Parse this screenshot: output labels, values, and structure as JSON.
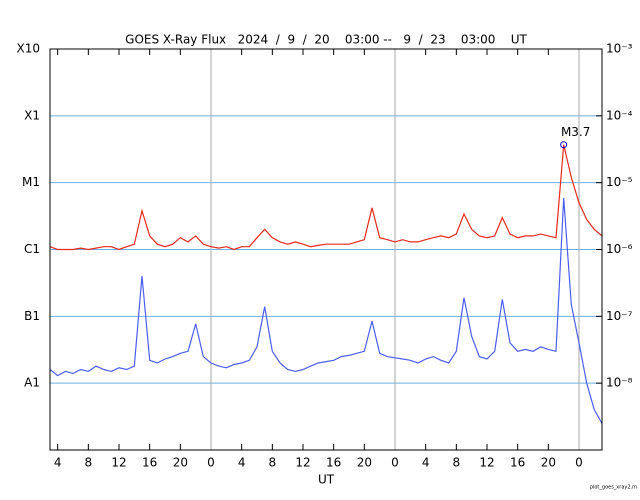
{
  "chart_data": {
    "type": "line",
    "title": "GOES X-Ray Flux   2024  /  9  /  20    03:00 --   9  /  23    03:00    UT",
    "xlabel": "UT",
    "footnote": "plot_goes_xray2.m",
    "log_y": true,
    "x": [
      0,
      1,
      2,
      3,
      4,
      5,
      6,
      7,
      8,
      9,
      10,
      11,
      12,
      13,
      14,
      15,
      16,
      17,
      18,
      19,
      20,
      21,
      22,
      23,
      24,
      25,
      26,
      27,
      28,
      29,
      30,
      31,
      32,
      33,
      34,
      35,
      36,
      37,
      38,
      39,
      40,
      41,
      42,
      43,
      44,
      45,
      46,
      47,
      48,
      49,
      50,
      51,
      52,
      53,
      54,
      55,
      56,
      57,
      58,
      59,
      60,
      61,
      62,
      63,
      64,
      65,
      66,
      67,
      68,
      69,
      70,
      71,
      72
    ],
    "xlim": [
      0,
      72
    ],
    "xticks": [
      {
        "value": 1,
        "label": "4"
      },
      {
        "value": 5,
        "label": "8"
      },
      {
        "value": 9,
        "label": "12"
      },
      {
        "value": 13,
        "label": "16"
      },
      {
        "value": 17,
        "label": "20"
      },
      {
        "value": 21,
        "label": "0"
      },
      {
        "value": 25,
        "label": "4"
      },
      {
        "value": 29,
        "label": "8"
      },
      {
        "value": 33,
        "label": "12"
      },
      {
        "value": 37,
        "label": "16"
      },
      {
        "value": 41,
        "label": "20"
      },
      {
        "value": 45,
        "label": "0"
      },
      {
        "value": 49,
        "label": "4"
      },
      {
        "value": 53,
        "label": "8"
      },
      {
        "value": 57,
        "label": "12"
      },
      {
        "value": 61,
        "label": "16"
      },
      {
        "value": 65,
        "label": "20"
      },
      {
        "value": 69,
        "label": "0"
      }
    ],
    "ylim": [
      1e-09,
      0.001
    ],
    "yticks": [
      {
        "value": 0.001,
        "label": "X10"
      },
      {
        "value": 0.0001,
        "label": "X1"
      },
      {
        "value": 1e-05,
        "label": "M1"
      },
      {
        "value": 1e-06,
        "label": "C1"
      },
      {
        "value": 1e-07,
        "label": "B1"
      },
      {
        "value": 1e-08,
        "label": "A1"
      }
    ],
    "y2ticks": [
      {
        "value": 0.001,
        "label": "10⁻³"
      },
      {
        "value": 0.0001,
        "label": "10⁻⁴"
      },
      {
        "value": 1e-05,
        "label": "10⁻⁵"
      },
      {
        "value": 1e-06,
        "label": "10⁻⁶"
      },
      {
        "value": 1e-07,
        "label": "10⁻⁷"
      },
      {
        "value": 1e-08,
        "label": "10⁻⁸"
      }
    ],
    "grid": true,
    "series": [
      {
        "color": "#e8291c",
        "values": [
          1.1e-06,
          1e-06,
          1e-06,
          1e-06,
          1.05e-06,
          1e-06,
          1.05e-06,
          1.1e-06,
          1.1e-06,
          1e-06,
          1.1e-06,
          1.2e-06,
          3.8e-06,
          1.6e-06,
          1.2e-06,
          1.1e-06,
          1.2e-06,
          1.5e-06,
          1.3e-06,
          1.6e-06,
          1.2e-06,
          1.1e-06,
          1.05e-06,
          1.1e-06,
          1e-06,
          1.1e-06,
          1.1e-06,
          1.5e-06,
          2e-06,
          1.5e-06,
          1.3e-06,
          1.2e-06,
          1.3e-06,
          1.2e-06,
          1.1e-06,
          1.15e-06,
          1.2e-06,
          1.2e-06,
          1.2e-06,
          1.2e-06,
          1.3e-06,
          1.4e-06,
          4.2e-06,
          1.5e-06,
          1.4e-06,
          1.3e-06,
          1.4e-06,
          1.3e-06,
          1.3e-06,
          1.4e-06,
          1.5e-06,
          1.6e-06,
          1.5e-06,
          1.7e-06,
          3.4e-06,
          2e-06,
          1.6e-06,
          1.5e-06,
          1.6e-06,
          3e-06,
          1.7e-06,
          1.5e-06,
          1.6e-06,
          1.6e-06,
          1.7e-06,
          1.6e-06,
          1.5e-06,
          3.7e-05,
          1.2e-05,
          5e-06,
          2.8e-06,
          2e-06,
          1.6e-06
        ]
      },
      {
        "color": "#4a5ef0",
        "values": [
          1.6e-08,
          1.3e-08,
          1.5e-08,
          1.4e-08,
          1.6e-08,
          1.5e-08,
          1.8e-08,
          1.6e-08,
          1.5e-08,
          1.7e-08,
          1.6e-08,
          1.8e-08,
          4e-07,
          2.2e-08,
          2e-08,
          2.3e-08,
          2.5e-08,
          2.8e-08,
          3e-08,
          7.7e-08,
          2.5e-08,
          2e-08,
          1.8e-08,
          1.7e-08,
          1.9e-08,
          2e-08,
          2.2e-08,
          3.5e-08,
          1.4e-07,
          3e-08,
          2e-08,
          1.6e-08,
          1.5e-08,
          1.6e-08,
          1.8e-08,
          2e-08,
          2.1e-08,
          2.2e-08,
          2.5e-08,
          2.6e-08,
          2.8e-08,
          3e-08,
          8.5e-08,
          2.8e-08,
          2.5e-08,
          2.4e-08,
          2.3e-08,
          2.2e-08,
          2e-08,
          2.3e-08,
          2.5e-08,
          2.2e-08,
          2e-08,
          3e-08,
          1.9e-07,
          5e-08,
          2.5e-08,
          2.3e-08,
          3e-08,
          1.8e-07,
          4e-08,
          3e-08,
          3.2e-08,
          3e-08,
          3.5e-08,
          3.2e-08,
          3e-08,
          5.9e-06,
          1.5e-07,
          4e-08,
          1e-08,
          4e-09,
          2.5e-09
        ]
      }
    ],
    "annotation": {
      "text": "M3.7",
      "x": 67,
      "y": 3.7e-05
    }
  }
}
